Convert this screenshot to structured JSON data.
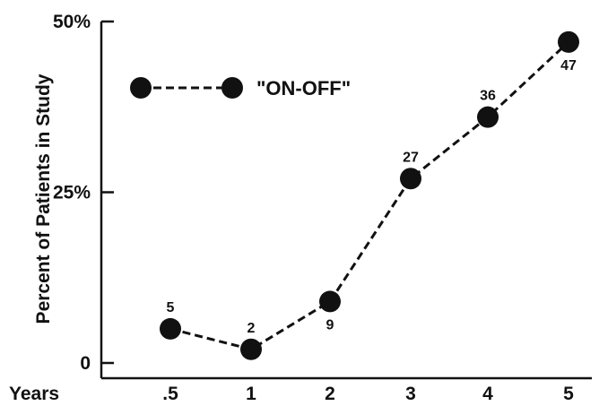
{
  "chart_data": {
    "type": "line",
    "title": "",
    "xlabel": "Years",
    "ylabel": "Percent of Patients in Study",
    "categories": [
      ".5",
      "1",
      "2",
      "3",
      "4",
      "5"
    ],
    "series": [
      {
        "name": "\"ON-OFF\"",
        "values": [
          5,
          2,
          9,
          27,
          36,
          47
        ],
        "data_labels": [
          "5",
          "2",
          "9",
          "27",
          "36",
          "47"
        ],
        "line_style": "dashed",
        "marker": "filled-circle",
        "color": "#111111"
      }
    ],
    "yticks": [
      {
        "value": 0,
        "label": "0"
      },
      {
        "value": 25,
        "label": "25%"
      },
      {
        "value": 50,
        "label": "50%"
      }
    ],
    "ylim": [
      0,
      50
    ],
    "grid": false,
    "legend_position": "top-left"
  }
}
